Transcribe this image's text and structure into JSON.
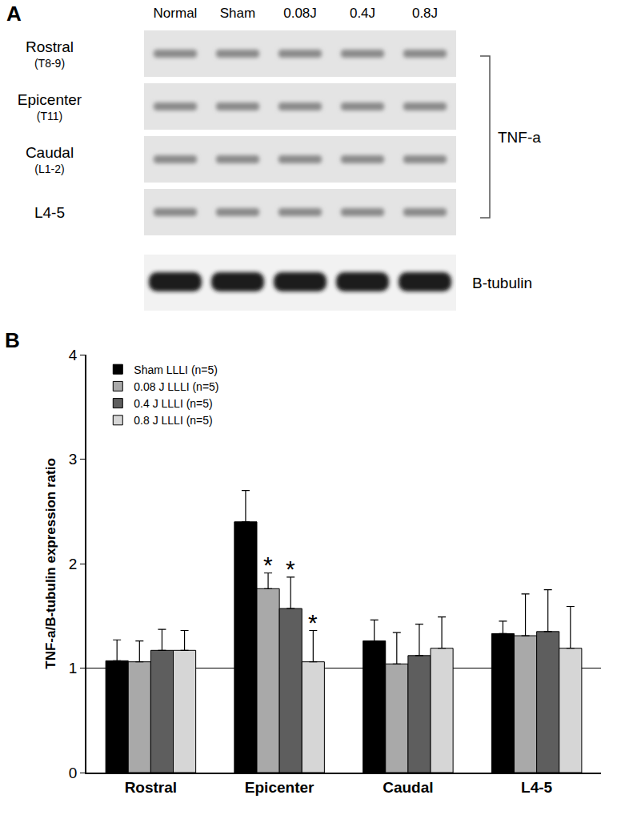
{
  "blot": {
    "panel_label": "A",
    "lanes": [
      "Normal",
      "Sham",
      "0.08J",
      "0.4J",
      "0.8J"
    ],
    "rows": [
      {
        "label": "Rostral",
        "sublabel": "(T8-9)"
      },
      {
        "label": "Epicenter",
        "sublabel": "(T11)"
      },
      {
        "label": "Caudal",
        "sublabel": "(L1-2)"
      },
      {
        "label": "L4-5",
        "sublabel": null
      }
    ],
    "target": "TNF-a",
    "loading_control": "B-tubulin"
  },
  "chart_data": {
    "type": "bar",
    "panel_label": "B",
    "y_label": "TNF-a/B-tubulin expression ratio",
    "categories": [
      "Rostral",
      "Epicenter",
      "Caudal",
      "L4-5"
    ],
    "series": [
      {
        "name": "Sham LLLI (n=5)",
        "color": "#000000",
        "values": [
          1.07,
          2.4,
          1.26,
          1.33
        ],
        "errors": [
          0.2,
          0.3,
          0.2,
          0.12
        ]
      },
      {
        "name": "0.08 J LLLI (n=5)",
        "color": "#a9a9a9",
        "values": [
          1.06,
          1.76,
          1.04,
          1.31
        ],
        "errors": [
          0.2,
          0.15,
          0.3,
          0.4
        ]
      },
      {
        "name": "0.4 J LLLI (n=5)",
        "color": "#5e5e5e",
        "values": [
          1.17,
          1.57,
          1.12,
          1.35
        ],
        "errors": [
          0.2,
          0.3,
          0.3,
          0.4
        ]
      },
      {
        "name": "0.8 J LLLI (n=5)",
        "color": "#d6d6d6",
        "values": [
          1.17,
          1.06,
          1.19,
          1.19
        ],
        "errors": [
          0.19,
          0.3,
          0.3,
          0.4
        ]
      }
    ],
    "annotations": [
      {
        "text": "*",
        "category": "Epicenter",
        "series": "0.08 J LLLI (n=5)"
      },
      {
        "text": "*",
        "category": "Epicenter",
        "series": "0.4 J LLLI (n=5)"
      },
      {
        "text": "*",
        "category": "Epicenter",
        "series": "0.8 J LLLI (n=5)"
      }
    ],
    "reference_line": 1,
    "ylim": [
      0,
      4
    ],
    "yticks": [
      0,
      1,
      2,
      3,
      4
    ],
    "grid": false,
    "legend": "upper left"
  }
}
